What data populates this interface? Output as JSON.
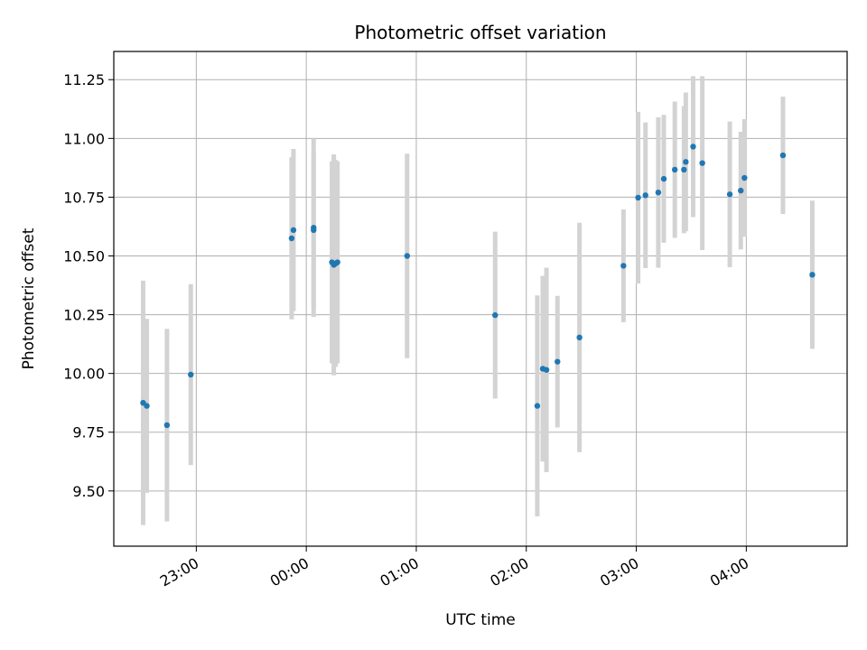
{
  "chart_data": {
    "type": "scatter",
    "title": "Photometric offset variation",
    "xlabel": "UTC time",
    "ylabel": "Photometric offset",
    "x_ticks": [
      "23:00",
      "00:00",
      "01:00",
      "02:00",
      "03:00",
      "04:00"
    ],
    "y_ticks": [
      "9.50",
      "9.75",
      "10.00",
      "10.25",
      "10.50",
      "10.75",
      "11.00",
      "11.25"
    ],
    "xlim": [
      "22:15",
      "04:55"
    ],
    "ylim": [
      9.265,
      11.37
    ],
    "grid": true,
    "colors": {
      "points": "#1f77b4",
      "errorbars": "#d3d3d3",
      "grid": "#b0b0b0"
    },
    "points": [
      {
        "x": "22:31",
        "y": 9.875,
        "err": 0.52
      },
      {
        "x": "22:33",
        "y": 9.862,
        "err": 0.37
      },
      {
        "x": "22:44",
        "y": 9.78,
        "err": 0.41
      },
      {
        "x": "22:57",
        "y": 9.995,
        "err": 0.385
      },
      {
        "x": "23:52",
        "y": 10.575,
        "err": 0.345
      },
      {
        "x": "23:53",
        "y": 10.61,
        "err": 0.345
      },
      {
        "x": "00:04",
        "y": 10.62,
        "err": 0.38
      },
      {
        "x": "00:04",
        "y": 10.61,
        "err": 0.33
      },
      {
        "x": "00:14",
        "y": 10.473,
        "err": 0.43
      },
      {
        "x": "00:15",
        "y": 10.462,
        "err": 0.47
      },
      {
        "x": "00:16",
        "y": 10.468,
        "err": 0.44
      },
      {
        "x": "00:17",
        "y": 10.473,
        "err": 0.43
      },
      {
        "x": "00:55",
        "y": 10.5,
        "err": 0.435
      },
      {
        "x": "01:43",
        "y": 10.248,
        "err": 0.355
      },
      {
        "x": "02:06",
        "y": 9.862,
        "err": 0.47
      },
      {
        "x": "02:09",
        "y": 10.02,
        "err": 0.395
      },
      {
        "x": "02:11",
        "y": 10.015,
        "err": 0.435
      },
      {
        "x": "02:17",
        "y": 10.05,
        "err": 0.28
      },
      {
        "x": "02:29",
        "y": 10.153,
        "err": 0.488
      },
      {
        "x": "02:53",
        "y": 10.458,
        "err": 0.24
      },
      {
        "x": "03:01",
        "y": 10.748,
        "err": 0.365
      },
      {
        "x": "03:05",
        "y": 10.758,
        "err": 0.31
      },
      {
        "x": "03:12",
        "y": 10.77,
        "err": 0.32
      },
      {
        "x": "03:15",
        "y": 10.828,
        "err": 0.272
      },
      {
        "x": "03:21",
        "y": 10.867,
        "err": 0.29
      },
      {
        "x": "03:26",
        "y": 10.867,
        "err": 0.27
      },
      {
        "x": "03:27",
        "y": 10.9,
        "err": 0.295
      },
      {
        "x": "03:31",
        "y": 10.965,
        "err": 0.3
      },
      {
        "x": "03:36",
        "y": 10.895,
        "err": 0.37
      },
      {
        "x": "03:51",
        "y": 10.762,
        "err": 0.31
      },
      {
        "x": "03:57",
        "y": 10.778,
        "err": 0.25
      },
      {
        "x": "03:59",
        "y": 10.832,
        "err": 0.25
      },
      {
        "x": "04:20",
        "y": 10.928,
        "err": 0.25
      },
      {
        "x": "04:36",
        "y": 10.42,
        "err": 0.315
      }
    ]
  }
}
